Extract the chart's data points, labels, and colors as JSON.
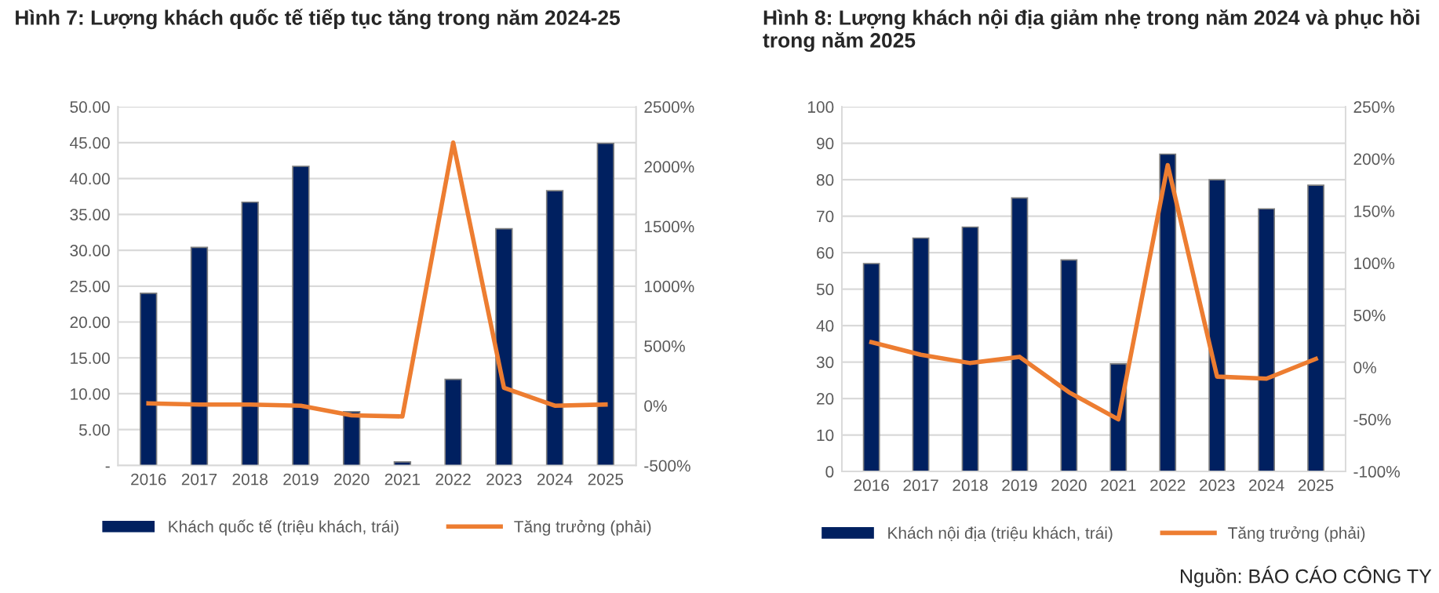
{
  "chart_data": [
    {
      "type": "bar",
      "title": "Hình 7: Lượng khách quốc tế tiếp tục tăng trong năm 2024-25",
      "categories": [
        "2016",
        "2017",
        "2018",
        "2019",
        "2020",
        "2021",
        "2022",
        "2023",
        "2024",
        "2025"
      ],
      "series": [
        {
          "name": "Khách quốc tế (triệu khách, trái)",
          "color": "#002060",
          "values": [
            24.0,
            30.4,
            36.7,
            41.7,
            7.5,
            0.5,
            12.0,
            33.0,
            38.3,
            44.9
          ]
        },
        {
          "name": "Tăng trưởng (phải)",
          "type": "line",
          "axis": "y2",
          "color": "#ed7d31",
          "values": [
            20,
            10,
            10,
            0,
            -80,
            -90,
            2200,
            150,
            0,
            10
          ]
        }
      ],
      "ylim": [
        0,
        50
      ],
      "yticks": [
        {
          "value": 0,
          "label": "-"
        },
        {
          "value": 5,
          "label": "5.00"
        },
        {
          "value": 10,
          "label": "10.00"
        },
        {
          "value": 15,
          "label": "15.00"
        },
        {
          "value": 20,
          "label": "20.00"
        },
        {
          "value": 25,
          "label": "25.00"
        },
        {
          "value": 30,
          "label": "30.00"
        },
        {
          "value": 35,
          "label": "35.00"
        },
        {
          "value": 40,
          "label": "40.00"
        },
        {
          "value": 45,
          "label": "45.00"
        },
        {
          "value": 50,
          "label": "50.00"
        }
      ],
      "y2lim": [
        -500,
        2500
      ],
      "y2ticks": [
        {
          "value": -500,
          "label": "-500%"
        },
        {
          "value": 0,
          "label": "0%"
        },
        {
          "value": 500,
          "label": "500%"
        },
        {
          "value": 1000,
          "label": "1000%"
        },
        {
          "value": 1500,
          "label": "1500%"
        },
        {
          "value": 2000,
          "label": "2000%"
        },
        {
          "value": 2500,
          "label": "2500%"
        }
      ],
      "grid": "y",
      "legend": "bottom"
    },
    {
      "type": "bar",
      "title": "Hình 8: Lượng khách nội địa giảm nhẹ trong năm 2024 và phục hồi trong năm 2025",
      "categories": [
        "2016",
        "2017",
        "2018",
        "2019",
        "2020",
        "2021",
        "2022",
        "2023",
        "2024",
        "2025"
      ],
      "series": [
        {
          "name": "Khách nội địa (triệu khách, trái)",
          "color": "#002060",
          "values": [
            57,
            64,
            67,
            75,
            58,
            29.5,
            87,
            80,
            72,
            78.5
          ]
        },
        {
          "name": "Tăng trưởng (phải)",
          "type": "line",
          "axis": "y2",
          "color": "#ed7d31",
          "values": [
            24,
            12,
            4,
            10,
            -24,
            -50,
            194,
            -9,
            -11,
            8
          ]
        }
      ],
      "ylim": [
        0,
        100
      ],
      "yticks": [
        0,
        10,
        20,
        30,
        40,
        50,
        60,
        70,
        80,
        90,
        100
      ],
      "y2lim": [
        -100,
        250
      ],
      "y2ticks": [
        {
          "value": -100,
          "label": "-100%"
        },
        {
          "value": -50,
          "label": "-50%"
        },
        {
          "value": 0,
          "label": "0%"
        },
        {
          "value": 50,
          "label": "50%"
        },
        {
          "value": 100,
          "label": "100%"
        },
        {
          "value": 150,
          "label": "150%"
        },
        {
          "value": 200,
          "label": "200%"
        },
        {
          "value": 250,
          "label": "250%"
        }
      ],
      "grid": "y",
      "legend": "bottom",
      "annotations": [
        "Nguồn: BÁO CÁO CÔNG TY"
      ]
    }
  ]
}
